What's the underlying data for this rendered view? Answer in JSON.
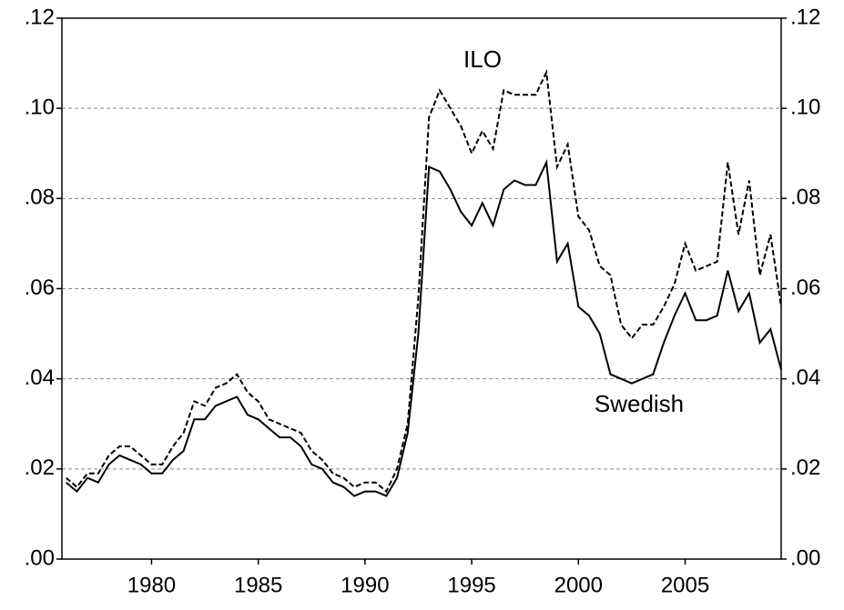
{
  "chart_data": {
    "type": "line",
    "x": [
      1976.0,
      1976.5,
      1977.0,
      1977.5,
      1978.0,
      1978.5,
      1979.0,
      1979.5,
      1980.0,
      1980.5,
      1981.0,
      1981.5,
      1982.0,
      1982.5,
      1983.0,
      1983.5,
      1984.0,
      1984.5,
      1985.0,
      1985.5,
      1986.0,
      1986.5,
      1987.0,
      1987.5,
      1988.0,
      1988.5,
      1989.0,
      1989.5,
      1990.0,
      1990.5,
      1991.0,
      1991.5,
      1992.0,
      1992.5,
      1993.0,
      1993.5,
      1994.0,
      1994.5,
      1995.0,
      1995.5,
      1996.0,
      1996.5,
      1997.0,
      1997.5,
      1998.0,
      1998.5,
      1999.0,
      1999.5,
      2000.0,
      2000.5,
      2001.0,
      2001.5,
      2002.0,
      2002.5,
      2003.0,
      2003.5,
      2004.0,
      2004.5,
      2005.0,
      2005.5,
      2006.0,
      2006.5,
      2007.0,
      2007.5,
      2008.0,
      2008.5,
      2009.0,
      2009.5
    ],
    "series": [
      {
        "name": "ILO",
        "color": "#000000",
        "style": "dashed",
        "values": [
          0.018,
          0.016,
          0.019,
          0.019,
          0.023,
          0.025,
          0.025,
          0.023,
          0.021,
          0.021,
          0.025,
          0.028,
          0.035,
          0.034,
          0.038,
          0.039,
          0.041,
          0.037,
          0.035,
          0.031,
          0.03,
          0.029,
          0.028,
          0.024,
          0.022,
          0.019,
          0.018,
          0.016,
          0.017,
          0.017,
          0.015,
          0.02,
          0.03,
          0.058,
          0.098,
          0.104,
          0.1,
          0.096,
          0.09,
          0.095,
          0.091,
          0.104,
          0.103,
          0.103,
          0.103,
          0.108,
          0.087,
          0.092,
          0.076,
          0.073,
          0.065,
          0.063,
          0.052,
          0.049,
          0.052,
          0.052,
          0.056,
          0.061,
          0.07,
          0.064,
          0.065,
          0.066,
          0.088,
          0.072,
          0.084,
          0.063,
          0.072,
          0.056
        ]
      },
      {
        "name": "Swedish",
        "color": "#000000",
        "style": "solid",
        "values": [
          0.017,
          0.015,
          0.018,
          0.017,
          0.021,
          0.023,
          0.022,
          0.021,
          0.019,
          0.019,
          0.022,
          0.024,
          0.031,
          0.031,
          0.034,
          0.035,
          0.036,
          0.032,
          0.031,
          0.029,
          0.027,
          0.027,
          0.025,
          0.021,
          0.02,
          0.017,
          0.016,
          0.014,
          0.015,
          0.015,
          0.014,
          0.018,
          0.028,
          0.05,
          0.087,
          0.086,
          0.082,
          0.077,
          0.074,
          0.079,
          0.074,
          0.082,
          0.084,
          0.083,
          0.083,
          0.088,
          0.066,
          0.07,
          0.056,
          0.054,
          0.05,
          0.041,
          0.04,
          0.039,
          0.04,
          0.041,
          0.048,
          0.054,
          0.059,
          0.053,
          0.053,
          0.054,
          0.064,
          0.055,
          0.059,
          0.048,
          0.051,
          0.042
        ]
      }
    ],
    "xlim": [
      1975.8,
      2009.5
    ],
    "xticks": [
      1980,
      1985,
      1990,
      1995,
      2000,
      2005
    ],
    "ylim": [
      0,
      0.12
    ],
    "yticks": [
      {
        "value": 0,
        "label": ".00"
      },
      {
        "value": 0.02,
        "label": ".02"
      },
      {
        "value": 0.04,
        "label": ".04"
      },
      {
        "value": 0.06,
        "label": ".06"
      },
      {
        "value": 0.08,
        "label": ".08"
      },
      {
        "value": 0.1,
        "label": ".10"
      },
      {
        "value": 0.12,
        "label": ".12"
      }
    ],
    "grid": true
  }
}
